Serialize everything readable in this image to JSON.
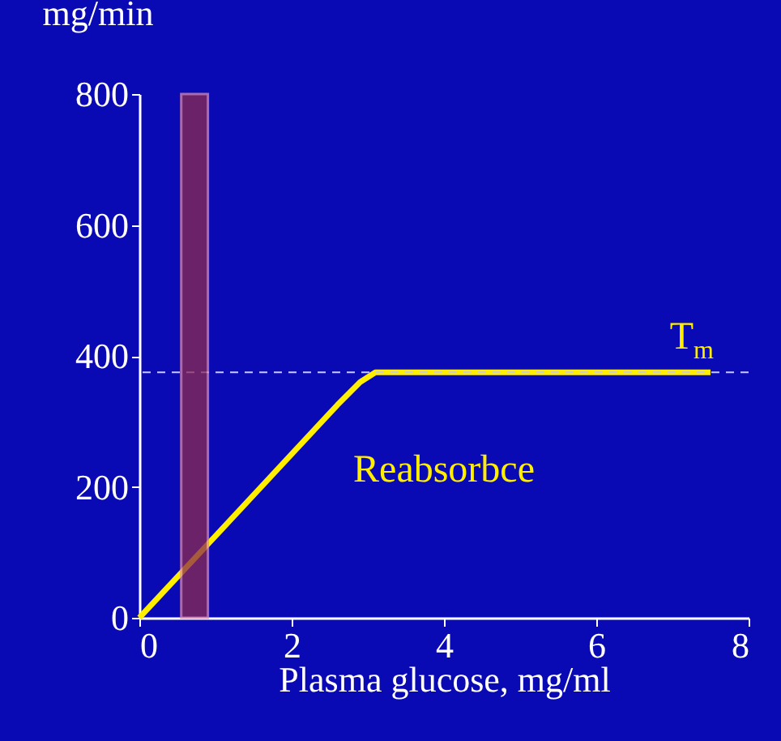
{
  "chart_data": {
    "type": "line",
    "xlabel": "Plasma glucose, mg/ml",
    "ylabel": "mg/min",
    "xlim": [
      0,
      8
    ],
    "xticks": [
      0,
      2,
      4,
      6,
      8
    ],
    "ylim": [
      0,
      800
    ],
    "yticks": [
      0,
      200,
      400,
      600,
      800
    ],
    "bands": [
      {
        "axis": "x",
        "from": 0.55,
        "to": 0.9,
        "color": "#8c2a50"
      }
    ],
    "series": [
      {
        "color": "#ffee00",
        "x": [
          0,
          1,
          2,
          2.6,
          2.9,
          3.1,
          7.5
        ],
        "values": [
          0,
          125,
          250,
          325,
          360,
          375,
          375
        ]
      }
    ],
    "ref_lines": [
      {
        "axis": "y",
        "value": 375,
        "color": "#c8c8ff",
        "line_style": "dashed"
      }
    ],
    "annotations": [
      "T$_{m}$",
      "Reabsorbce"
    ]
  }
}
